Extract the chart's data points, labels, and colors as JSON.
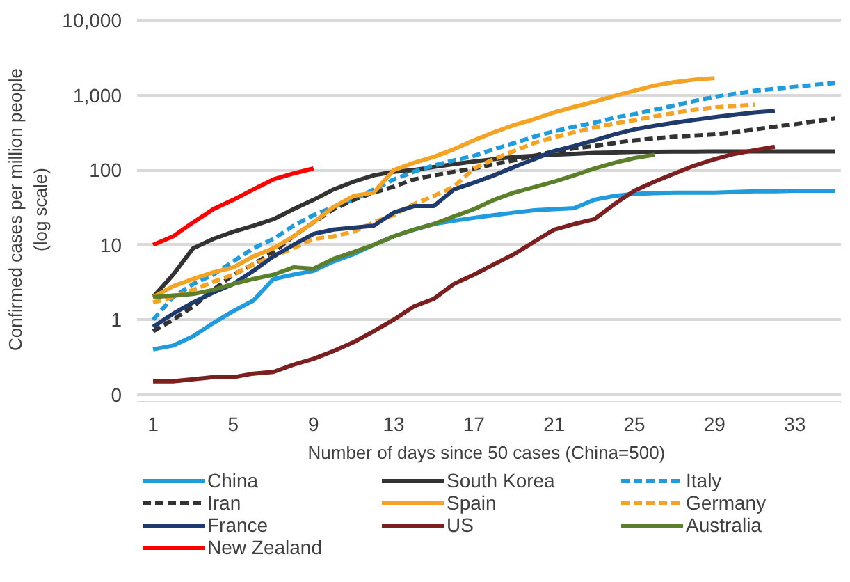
{
  "chart_data": {
    "type": "line",
    "xlabel": "Number  of days since 50 cases (China=500)",
    "ylabel": "Confirmed cases per million people\n(log scale)",
    "log": true,
    "grid": "y",
    "legend": "bottom",
    "line_style": "solid",
    "xlim": [
      0.2,
      35.3
    ],
    "xticks": [
      1,
      5,
      9,
      13,
      17,
      21,
      25,
      29,
      33
    ],
    "ylim": [
      0.08,
      11000
    ],
    "yticks": [
      {
        "value": 0.1,
        "label": "0"
      },
      1,
      10,
      100,
      {
        "value": 1000,
        "label": "1,000"
      },
      {
        "value": 10000,
        "label": "10,000"
      }
    ],
    "series": [
      {
        "name": "China",
        "color": "#1f9bde",
        "x": [
          1,
          2,
          3,
          4,
          5,
          6,
          7,
          8,
          9,
          10,
          11,
          12,
          13,
          14,
          15,
          16,
          17,
          18,
          19,
          20,
          21,
          22,
          23,
          24,
          25,
          26,
          27,
          28,
          29,
          30,
          31,
          32,
          33,
          34,
          35
        ],
        "values": [
          0.4,
          0.45,
          0.6,
          0.9,
          1.3,
          1.8,
          3.5,
          4,
          4.5,
          6,
          7.5,
          10,
          13,
          16,
          19,
          21,
          23,
          25,
          27,
          29,
          30,
          31,
          40,
          45,
          48,
          49,
          50,
          50,
          50,
          51,
          52,
          52,
          53,
          53,
          53
        ]
      },
      {
        "name": "South Korea",
        "color": "#333333",
        "x": [
          1,
          2,
          3,
          4,
          5,
          6,
          7,
          8,
          9,
          10,
          11,
          12,
          13,
          14,
          15,
          16,
          17,
          18,
          19,
          20,
          21,
          22,
          23,
          24,
          25,
          26,
          27,
          28,
          29,
          30,
          31,
          32,
          33,
          34,
          35
        ],
        "values": [
          2,
          4,
          9,
          12,
          15,
          18,
          22,
          30,
          40,
          55,
          70,
          85,
          95,
          100,
          110,
          120,
          130,
          140,
          150,
          155,
          160,
          165,
          170,
          172,
          175,
          176,
          177,
          177,
          178,
          178,
          178,
          178,
          178,
          178,
          178
        ]
      },
      {
        "name": "Italy",
        "color": "#1f9bde",
        "line_style": "dashed",
        "x": [
          1,
          2,
          3,
          4,
          5,
          6,
          7,
          8,
          9,
          10,
          11,
          12,
          13,
          14,
          15,
          16,
          17,
          18,
          19,
          20,
          21,
          22,
          23,
          24,
          25,
          26,
          27,
          28,
          29,
          30,
          31,
          32,
          33,
          34,
          35
        ],
        "values": [
          1,
          2,
          3,
          4,
          6,
          9,
          12,
          18,
          25,
          32,
          40,
          55,
          75,
          95,
          115,
          135,
          155,
          190,
          230,
          280,
          330,
          380,
          430,
          500,
          560,
          640,
          730,
          840,
          950,
          1050,
          1150,
          1220,
          1300,
          1380,
          1460
        ]
      },
      {
        "name": "Iran",
        "color": "#333333",
        "line_style": "dashed",
        "x": [
          1,
          2,
          3,
          4,
          5,
          6,
          7,
          8,
          9,
          10,
          11,
          12,
          13,
          14,
          15,
          16,
          17,
          18,
          19,
          20,
          21,
          22,
          23,
          24,
          25,
          26,
          27,
          28,
          29,
          30,
          31,
          32,
          33,
          34,
          35
        ],
        "values": [
          0.7,
          1,
          1.5,
          2.5,
          4,
          5.5,
          8,
          13,
          20,
          30,
          40,
          50,
          60,
          75,
          85,
          95,
          105,
          120,
          135,
          155,
          178,
          195,
          210,
          230,
          250,
          265,
          280,
          290,
          300,
          320,
          350,
          380,
          410,
          450,
          490
        ]
      },
      {
        "name": "Spain",
        "color": "#f5a325",
        "x": [
          1,
          2,
          3,
          4,
          5,
          6,
          7,
          8,
          9,
          10,
          11,
          12,
          13,
          14,
          15,
          16,
          17,
          18,
          19,
          20,
          21,
          22,
          23,
          24,
          25,
          26,
          27,
          28,
          29
        ],
        "values": [
          2,
          2.8,
          3.5,
          4.3,
          5,
          7,
          9,
          13,
          20,
          32,
          45,
          50,
          100,
          125,
          150,
          190,
          250,
          320,
          400,
          480,
          590,
          700,
          820,
          980,
          1150,
          1350,
          1500,
          1620,
          1700
        ]
      },
      {
        "name": "Germany",
        "color": "#f5a325",
        "line_style": "dashed",
        "x": [
          1,
          2,
          3,
          4,
          5,
          6,
          7,
          8,
          9,
          10,
          11,
          12,
          13,
          14,
          15,
          16,
          17,
          18,
          19,
          20,
          21,
          22,
          23,
          24,
          25,
          26,
          27,
          28,
          29,
          30,
          31
        ],
        "values": [
          1.7,
          2,
          2.5,
          3.2,
          4,
          5.5,
          7,
          9,
          12,
          13,
          15,
          20,
          25,
          35,
          45,
          60,
          105,
          140,
          180,
          230,
          275,
          320,
          370,
          420,
          465,
          520,
          580,
          640,
          690,
          720,
          750
        ]
      },
      {
        "name": "France",
        "color": "#1f3b6e",
        "x": [
          1,
          2,
          3,
          4,
          5,
          6,
          7,
          8,
          9,
          10,
          11,
          12,
          13,
          14,
          15,
          16,
          17,
          18,
          19,
          20,
          21,
          22,
          23,
          24,
          25,
          26,
          27,
          28,
          29,
          30,
          31,
          32
        ],
        "values": [
          0.8,
          1.2,
          1.7,
          2.3,
          3,
          4.5,
          7,
          10,
          14,
          16,
          17,
          18,
          27,
          33,
          33,
          55,
          68,
          85,
          110,
          140,
          180,
          210,
          250,
          300,
          350,
          390,
          430,
          470,
          510,
          550,
          590,
          620
        ]
      },
      {
        "name": "US",
        "color": "#7b1f1f",
        "x": [
          1,
          2,
          3,
          4,
          5,
          6,
          7,
          8,
          9,
          10,
          11,
          12,
          13,
          14,
          15,
          16,
          17,
          18,
          19,
          20,
          21,
          22,
          23,
          24,
          25,
          26,
          27,
          28,
          29,
          30,
          31,
          32
        ],
        "values": [
          0.15,
          0.15,
          0.16,
          0.17,
          0.17,
          0.19,
          0.2,
          0.25,
          0.3,
          0.38,
          0.5,
          0.7,
          1,
          1.5,
          1.9,
          3,
          4,
          5.5,
          7.5,
          11,
          16,
          19,
          22,
          35,
          53,
          70,
          90,
          115,
          140,
          165,
          185,
          205
        ]
      },
      {
        "name": "Australia",
        "color": "#5b7f2b",
        "x": [
          1,
          2,
          3,
          4,
          5,
          6,
          7,
          8,
          9,
          10,
          11,
          12,
          13,
          14,
          15,
          16,
          17,
          18,
          19,
          20,
          21,
          22,
          23,
          24,
          25,
          26
        ],
        "values": [
          2,
          2.1,
          2.2,
          2.5,
          3,
          3.5,
          4,
          5,
          4.8,
          6.5,
          8,
          10,
          13,
          16,
          19,
          24,
          30,
          40,
          50,
          59,
          70,
          85,
          105,
          125,
          145,
          160
        ]
      },
      {
        "name": "New Zealand",
        "color": "#ff0000",
        "x": [
          1,
          2,
          3,
          4,
          5,
          6,
          7,
          8,
          9
        ],
        "values": [
          10,
          13,
          20,
          30,
          40,
          55,
          75,
          90,
          105
        ]
      }
    ]
  }
}
